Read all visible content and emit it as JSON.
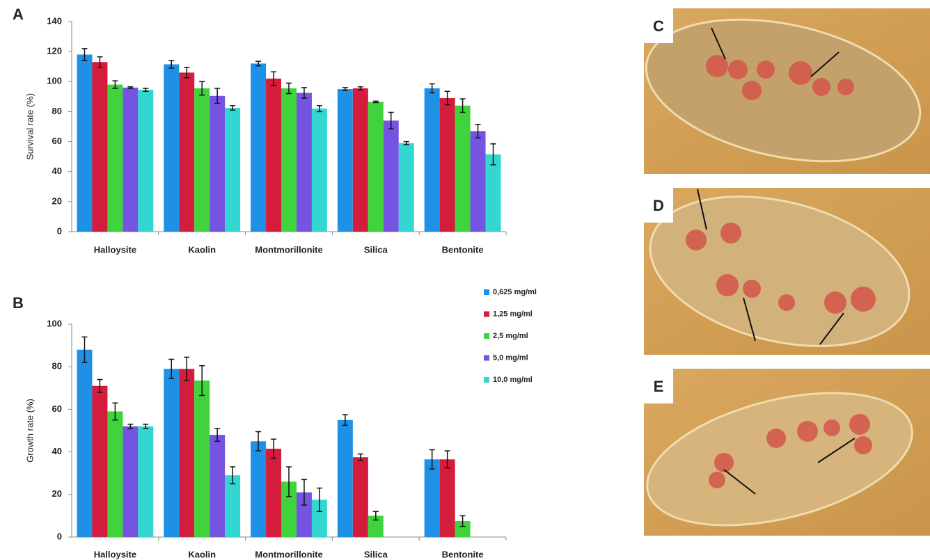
{
  "chart_data": [
    {
      "type": "bar",
      "panel_label": "A",
      "ylabel": "Survival rate (%)",
      "categories": [
        "Halloysite",
        "Kaolin",
        "Montmorillonite",
        "Silica",
        "Bentonite"
      ],
      "ylim": [
        0,
        140
      ],
      "yticks": [
        0,
        20,
        40,
        60,
        80,
        100,
        120,
        140
      ],
      "series": [
        {
          "name": "0,625 mg/ml",
          "color": "#1e90e6",
          "values": [
            118,
            111.5,
            112,
            95,
            95.5
          ],
          "errors": [
            4,
            2.5,
            1.5,
            1,
            3
          ]
        },
        {
          "name": "1,25 mg/ml",
          "color": "#d41c3c",
          "values": [
            113,
            106,
            102,
            95.5,
            89
          ],
          "errors": [
            3.5,
            3.5,
            4.5,
            1,
            4.5
          ]
        },
        {
          "name": "2,5 mg/ml",
          "color": "#3fd43c",
          "values": [
            98,
            95.5,
            95.5,
            86.5,
            84
          ],
          "errors": [
            2.5,
            4.5,
            3.5,
            0.5,
            4.5
          ]
        },
        {
          "name": "5,0 mg/ml",
          "color": "#7654e2",
          "values": [
            96,
            90.5,
            92.5,
            74,
            67
          ],
          "errors": [
            0.5,
            5,
            3.5,
            5.5,
            4.5
          ]
        },
        {
          "name": "10,0 mg/ml",
          "color": "#33d6d0",
          "values": [
            94.5,
            82.5,
            82,
            59,
            51.5
          ],
          "errors": [
            1,
            1.5,
            2,
            1,
            7
          ]
        }
      ]
    },
    {
      "type": "bar",
      "panel_label": "B",
      "ylabel": "Growth rate (%)",
      "legend": "right",
      "categories": [
        "Halloysite",
        "Kaolin",
        "Montmorillonite",
        "Silica",
        "Bentonite"
      ],
      "ylim": [
        0,
        100
      ],
      "yticks": [
        0,
        20,
        40,
        60,
        80,
        100
      ],
      "series": [
        {
          "name": "0,625 mg/ml",
          "color": "#1e90e6",
          "values": [
            88,
            79,
            45,
            55,
            36.5
          ],
          "errors": [
            6,
            4.5,
            4.5,
            2.5,
            4.5
          ]
        },
        {
          "name": "1,25 mg/ml",
          "color": "#d41c3c",
          "values": [
            71,
            79,
            41.5,
            37.5,
            36.5
          ],
          "errors": [
            3,
            5.5,
            4.5,
            1.5,
            4
          ]
        },
        {
          "name": "2,5 mg/ml",
          "color": "#3fd43c",
          "values": [
            59,
            73.5,
            26,
            10,
            7.5
          ],
          "errors": [
            4,
            7,
            7,
            2,
            2.5
          ]
        },
        {
          "name": "5,0 mg/ml",
          "color": "#7654e2",
          "values": [
            52,
            48,
            21,
            null,
            null
          ],
          "errors": [
            1,
            3,
            6,
            null,
            null
          ]
        },
        {
          "name": "10,0 mg/ml",
          "color": "#33d6d0",
          "values": [
            52,
            29,
            17.5,
            null,
            null
          ],
          "errors": [
            1,
            4,
            5.5,
            null,
            null
          ]
        }
      ]
    }
  ],
  "images": [
    {
      "label": "C"
    },
    {
      "label": "D"
    },
    {
      "label": "E"
    }
  ]
}
